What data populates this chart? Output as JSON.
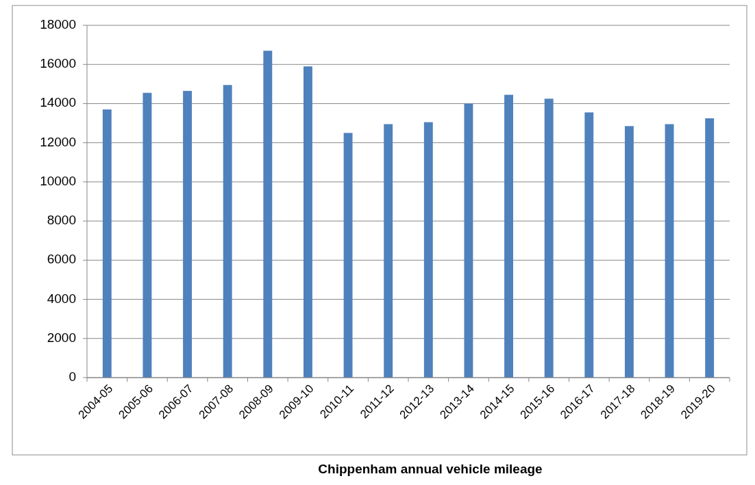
{
  "chart_data": {
    "type": "bar",
    "title": "Chippenham annual vehicle mileage",
    "categories": [
      "2004-05",
      "2005-06",
      "2006-07",
      "2007-08",
      "2008-09",
      "2009-10",
      "2010-11",
      "2011-12",
      "2012-13",
      "2013-14",
      "2014-15",
      "2015-16",
      "2016-17",
      "2017-18",
      "2018-19",
      "2019-20"
    ],
    "values": [
      13700,
      14550,
      14650,
      14950,
      16700,
      15900,
      12500,
      12950,
      13050,
      14000,
      14450,
      14250,
      13550,
      12850,
      12950,
      13250
    ],
    "color": "#4f81bd",
    "ylim": [
      0,
      18000
    ],
    "yticks": [
      0,
      2000,
      4000,
      6000,
      8000,
      10000,
      12000,
      14000,
      16000,
      18000
    ],
    "grid": "y"
  }
}
